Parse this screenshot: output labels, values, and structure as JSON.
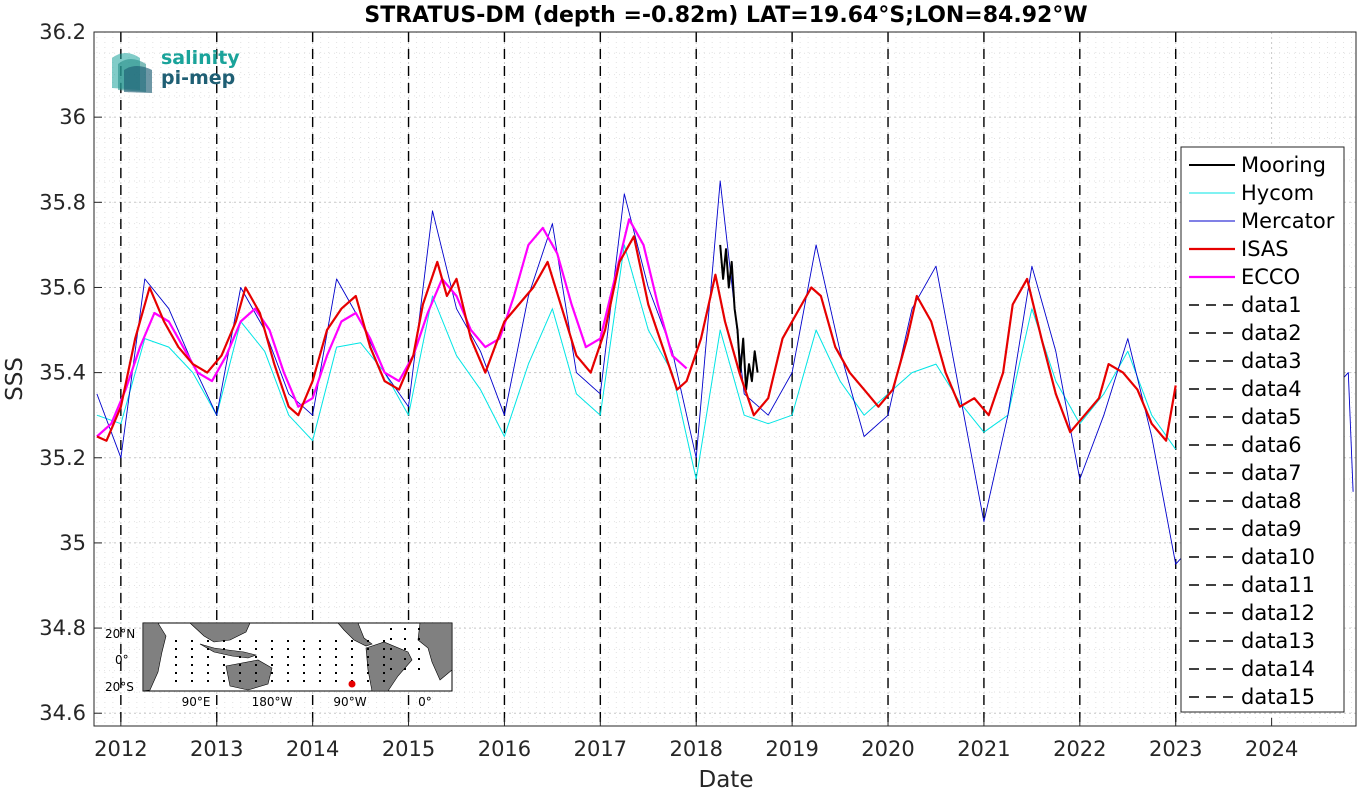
{
  "chart_data": {
    "type": "line",
    "title": "STRATUS-DM (depth =-0.82m) LAT=19.64°S;LON=84.92°W",
    "xlabel": "Date",
    "ylabel": "SSS",
    "xlim": [
      2011.72,
      2024.88
    ],
    "ylim": [
      34.57,
      36.2
    ],
    "yticks": [
      34.6,
      34.8,
      35,
      35.2,
      35.4,
      35.6,
      35.8,
      36,
      36.2
    ],
    "ytick_labels": [
      "34.6",
      "34.8",
      "35",
      "35.2",
      "35.4",
      "35.6",
      "35.8",
      "36",
      "36.2"
    ],
    "xticks": [
      2012,
      2013,
      2014,
      2015,
      2016,
      2017,
      2018,
      2019,
      2020,
      2021,
      2022,
      2023,
      2024
    ],
    "xtick_labels": [
      "2012",
      "2013",
      "2014",
      "2015",
      "2016",
      "2017",
      "2018",
      "2019",
      "2020",
      "2021",
      "2022",
      "2023",
      "2024"
    ],
    "grid": "on (dotted, major and minor)",
    "legend_placement": "right",
    "series": [
      {
        "name": "Mooring",
        "color": "#000000",
        "style": "solid",
        "x": [
          2018.25,
          2018.28,
          2018.31,
          2018.34,
          2018.37,
          2018.4,
          2018.43,
          2018.46,
          2018.49,
          2018.52,
          2018.55,
          2018.58,
          2018.61,
          2018.64
        ],
        "y": [
          35.7,
          35.62,
          35.69,
          35.6,
          35.66,
          35.55,
          35.5,
          35.4,
          35.48,
          35.36,
          35.42,
          35.38,
          35.45,
          35.4
        ]
      },
      {
        "name": "Hycom",
        "color": "#00e5e5",
        "style": "solid",
        "x": [
          2011.75,
          2012.0,
          2012.25,
          2012.5,
          2012.75,
          2013.0,
          2013.25,
          2013.5,
          2013.75,
          2014.0,
          2014.25,
          2014.5,
          2014.75,
          2015.0,
          2015.25,
          2015.5,
          2015.75,
          2016.0,
          2016.25,
          2016.5,
          2016.75,
          2017.0,
          2017.25,
          2017.5,
          2017.75,
          2018.0,
          2018.25,
          2018.5,
          2018.75,
          2019.0,
          2019.25,
          2019.5,
          2019.75,
          2020.0,
          2020.25,
          2020.5,
          2020.75,
          2021.0,
          2021.25,
          2021.5,
          2021.75,
          2022.0,
          2022.25,
          2022.5,
          2022.75,
          2023.0
        ],
        "y": [
          35.3,
          35.28,
          35.48,
          35.46,
          35.4,
          35.3,
          35.52,
          35.45,
          35.3,
          35.24,
          35.46,
          35.47,
          35.4,
          35.3,
          35.58,
          35.44,
          35.36,
          35.25,
          35.42,
          35.55,
          35.35,
          35.3,
          35.7,
          35.5,
          35.4,
          35.15,
          35.5,
          35.3,
          35.28,
          35.3,
          35.5,
          35.38,
          35.3,
          35.35,
          35.4,
          35.42,
          35.33,
          35.26,
          35.3,
          35.55,
          35.38,
          35.28,
          35.35,
          35.45,
          35.3,
          35.22
        ]
      },
      {
        "name": "Mercator",
        "color": "#0000cc",
        "style": "solid",
        "x": [
          2011.75,
          2012.0,
          2012.25,
          2012.5,
          2012.75,
          2013.0,
          2013.25,
          2013.5,
          2013.75,
          2014.0,
          2014.25,
          2014.5,
          2014.75,
          2015.0,
          2015.25,
          2015.5,
          2015.75,
          2016.0,
          2016.25,
          2016.5,
          2016.75,
          2017.0,
          2017.25,
          2017.5,
          2017.75,
          2018.0,
          2018.25,
          2018.5,
          2018.75,
          2019.0,
          2019.25,
          2019.5,
          2019.75,
          2020.0,
          2020.25,
          2020.5,
          2020.75,
          2021.0,
          2021.25,
          2021.5,
          2021.75,
          2022.0,
          2022.25,
          2022.5,
          2022.75,
          2023.0,
          2024.8,
          2024.85
        ],
        "y": [
          35.35,
          35.2,
          35.62,
          35.55,
          35.42,
          35.3,
          35.6,
          35.5,
          35.35,
          35.3,
          35.62,
          35.52,
          35.4,
          35.32,
          35.78,
          35.55,
          35.45,
          35.3,
          35.58,
          35.75,
          35.4,
          35.35,
          35.82,
          35.6,
          35.45,
          35.2,
          35.85,
          35.35,
          35.3,
          35.4,
          35.7,
          35.45,
          35.25,
          35.3,
          35.55,
          35.65,
          35.35,
          35.05,
          35.3,
          35.65,
          35.45,
          35.15,
          35.3,
          35.48,
          35.25,
          34.95,
          35.4,
          35.12
        ]
      },
      {
        "name": "ISAS",
        "color": "#e60000",
        "style": "solid",
        "x": [
          2011.75,
          2011.85,
          2012.0,
          2012.15,
          2012.3,
          2012.45,
          2012.6,
          2012.75,
          2012.9,
          2013.05,
          2013.2,
          2013.3,
          2013.45,
          2013.6,
          2013.75,
          2013.85,
          2014.0,
          2014.15,
          2014.3,
          2014.45,
          2014.6,
          2014.75,
          2014.9,
          2015.05,
          2015.15,
          2015.3,
          2015.4,
          2015.5,
          2015.65,
          2015.8,
          2015.9,
          2016.0,
          2016.15,
          2016.3,
          2016.45,
          2016.6,
          2016.75,
          2016.9,
          2017.05,
          2017.2,
          2017.35,
          2017.5,
          2017.65,
          2017.8,
          2017.9,
          2018.05,
          2018.2,
          2018.3,
          2018.45,
          2018.6,
          2018.75,
          2018.9,
          2019.05,
          2019.2,
          2019.3,
          2019.45,
          2019.6,
          2019.75,
          2019.9,
          2020.05,
          2020.2,
          2020.3,
          2020.45,
          2020.6,
          2020.75,
          2020.9,
          2021.05,
          2021.2,
          2021.3,
          2021.45,
          2021.6,
          2021.75,
          2021.9,
          2022.05,
          2022.2,
          2022.3,
          2022.45,
          2022.6,
          2022.75,
          2022.9,
          2023.0
        ],
        "y": [
          35.25,
          35.24,
          35.32,
          35.48,
          35.6,
          35.52,
          35.46,
          35.42,
          35.4,
          35.44,
          35.52,
          35.6,
          35.54,
          35.42,
          35.32,
          35.3,
          35.38,
          35.5,
          35.55,
          35.58,
          35.46,
          35.38,
          35.36,
          35.44,
          35.56,
          35.66,
          35.58,
          35.62,
          35.48,
          35.4,
          35.46,
          35.52,
          35.56,
          35.6,
          35.66,
          35.55,
          35.44,
          35.4,
          35.5,
          35.66,
          35.72,
          35.56,
          35.46,
          35.36,
          35.38,
          35.48,
          35.63,
          35.52,
          35.4,
          35.3,
          35.34,
          35.48,
          35.54,
          35.6,
          35.58,
          35.46,
          35.4,
          35.36,
          35.32,
          35.36,
          35.48,
          35.58,
          35.52,
          35.4,
          35.32,
          35.34,
          35.3,
          35.4,
          35.56,
          35.62,
          35.48,
          35.35,
          35.26,
          35.3,
          35.34,
          35.42,
          35.4,
          35.36,
          35.28,
          35.24,
          35.37
        ]
      },
      {
        "name": "ECCO",
        "color": "#ff00ff",
        "style": "solid",
        "x": [
          2011.75,
          2011.9,
          2012.05,
          2012.2,
          2012.35,
          2012.5,
          2012.65,
          2012.8,
          2012.95,
          2013.1,
          2013.25,
          2013.4,
          2013.55,
          2013.7,
          2013.85,
          2014.0,
          2014.15,
          2014.3,
          2014.45,
          2014.6,
          2014.75,
          2014.9,
          2015.05,
          2015.2,
          2015.35,
          2015.5,
          2015.65,
          2015.8,
          2015.95,
          2016.1,
          2016.25,
          2016.4,
          2016.55,
          2016.7,
          2016.85,
          2017.0,
          2017.15,
          2017.3,
          2017.45,
          2017.6,
          2017.75,
          2017.9
        ],
        "y": [
          35.25,
          35.28,
          35.36,
          35.46,
          35.54,
          35.52,
          35.46,
          35.4,
          35.38,
          35.44,
          35.52,
          35.55,
          35.5,
          35.4,
          35.32,
          35.34,
          35.44,
          35.52,
          35.54,
          35.48,
          35.4,
          35.38,
          35.44,
          35.54,
          35.62,
          35.58,
          35.5,
          35.46,
          35.48,
          35.58,
          35.7,
          35.74,
          35.68,
          35.56,
          35.46,
          35.48,
          35.62,
          35.76,
          35.7,
          35.56,
          35.44,
          35.41
        ]
      }
    ],
    "vertical_lines": {
      "style": "dashed",
      "color": "#000000",
      "x": [
        2012.0,
        2013.0,
        2014.0,
        2015.0,
        2016.0,
        2017.0,
        2018.0,
        2019.0,
        2020.0,
        2021.0,
        2022.0,
        2023.0
      ]
    },
    "legend": [
      "Mooring",
      "Hycom",
      "Mercator",
      "ISAS",
      "ECCO",
      "data1",
      "data2",
      "data3",
      "data4",
      "data5",
      "data6",
      "data7",
      "data8",
      "data9",
      "data10",
      "data11",
      "data12",
      "data13",
      "data14",
      "data15"
    ],
    "inset_map": {
      "lat_labels": [
        "20°N",
        "0°",
        "20°S"
      ],
      "lon_labels": [
        "90°E",
        "180°W",
        "90°W",
        "0°"
      ],
      "marker_color": "#e60000"
    },
    "logo": {
      "line1": "salinity",
      "line2": "pi-mep"
    }
  }
}
